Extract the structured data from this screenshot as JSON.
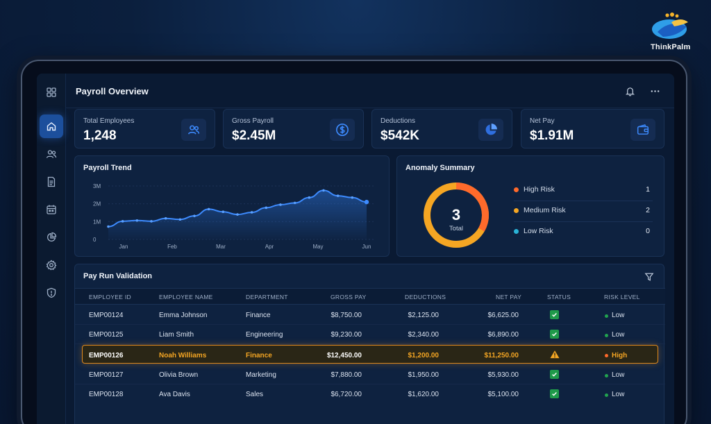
{
  "brand": {
    "name": "ThinkPalm"
  },
  "header": {
    "title": "Payroll Overview"
  },
  "colors": {
    "accent": "#2f7be8",
    "high": "#ff6a2b",
    "medium": "#f5a623",
    "low": "#2ab3d6",
    "ok": "#22a34f"
  },
  "sidebar": {
    "items": [
      {
        "name": "home-icon",
        "active": true
      },
      {
        "name": "users-icon",
        "active": false
      },
      {
        "name": "document-icon",
        "active": false
      },
      {
        "name": "calendar-icon",
        "active": false
      },
      {
        "name": "pie-chart-icon",
        "active": false
      },
      {
        "name": "gear-icon",
        "active": false
      },
      {
        "name": "shield-icon",
        "active": false
      }
    ]
  },
  "stats": [
    {
      "label": "Total Employees",
      "value": "1,248",
      "icon": "users-icon"
    },
    {
      "label": "Gross Payroll",
      "value": "$2.45M",
      "icon": "dollar-icon"
    },
    {
      "label": "Deductions",
      "value": "$542K",
      "icon": "pie-chart-icon"
    },
    {
      "label": "Net Pay",
      "value": "$1.91M",
      "icon": "wallet-icon"
    }
  ],
  "trend": {
    "title": "Payroll Trend",
    "y_ticks": [
      "3M",
      "2M",
      "1M",
      "0"
    ],
    "x_ticks": [
      "Jan",
      "Feb",
      "Mar",
      "Apr",
      "May",
      "Jun"
    ]
  },
  "chart_data": {
    "type": "area",
    "title": "Payroll Trend",
    "x": [
      "Jan",
      "",
      "",
      "",
      "Feb",
      "",
      "",
      "Mar",
      "",
      "",
      "",
      "Apr",
      "",
      "",
      "May",
      "",
      "",
      "",
      "Jun"
    ],
    "values": [
      0.72,
      1.02,
      1.06,
      1.02,
      1.18,
      1.12,
      1.32,
      1.7,
      1.55,
      1.4,
      1.52,
      1.78,
      1.95,
      2.05,
      2.35,
      2.75,
      2.45,
      2.35,
      2.1
    ],
    "ylim": [
      0,
      3
    ],
    "yticks": [
      "3M",
      "2M",
      "1M",
      "0"
    ],
    "xticks": [
      "Jan",
      "Feb",
      "Mar",
      "Apr",
      "May",
      "Jun"
    ],
    "grid": true
  },
  "anomaly": {
    "title": "Anomaly Summary",
    "total_value": "3",
    "total_label": "Total",
    "items": [
      {
        "label": "High Risk",
        "count": "1",
        "color": "#ff6a2b"
      },
      {
        "label": "Medium Risk",
        "count": "2",
        "color": "#f5a623"
      },
      {
        "label": "Low Risk",
        "count": "0",
        "color": "#2ab3d6"
      }
    ]
  },
  "table": {
    "title": "Pay Run Validation",
    "columns": [
      "EMPLOYEE ID",
      "EMPLOYEE NAME",
      "DEPARTMENT",
      "GROSS PAY",
      "DEDUCTIONS",
      "NET PAY",
      "STATUS",
      "RISK LEVEL"
    ],
    "rows": [
      {
        "id": "EMP00124",
        "name": "Emma Johnson",
        "dept": "Finance",
        "gross": "$8,750.00",
        "ded": "$2,125.00",
        "net": "$6,625.00",
        "status": "ok",
        "risk": "Low",
        "flag": false
      },
      {
        "id": "EMP00125",
        "name": "Liam Smith",
        "dept": "Engineering",
        "gross": "$9,230.00",
        "ded": "$2,340.00",
        "net": "$6,890.00",
        "status": "ok",
        "risk": "Low",
        "flag": false
      },
      {
        "id": "EMP00126",
        "name": "Noah Williams",
        "dept": "Finance",
        "gross": "$12,450.00",
        "ded": "$1,200.00",
        "net": "$11,250.00",
        "status": "warning",
        "risk": "High",
        "flag": true
      },
      {
        "id": "EMP00127",
        "name": "Olivia Brown",
        "dept": "Marketing",
        "gross": "$7,880.00",
        "ded": "$1,950.00",
        "net": "$5,930.00",
        "status": "ok",
        "risk": "Low",
        "flag": false
      },
      {
        "id": "EMP00128",
        "name": "Ava Davis",
        "dept": "Sales",
        "gross": "$6,720.00",
        "ded": "$1,620.00",
        "net": "$5,100.00",
        "status": "ok",
        "risk": "Low",
        "flag": false
      }
    ]
  }
}
